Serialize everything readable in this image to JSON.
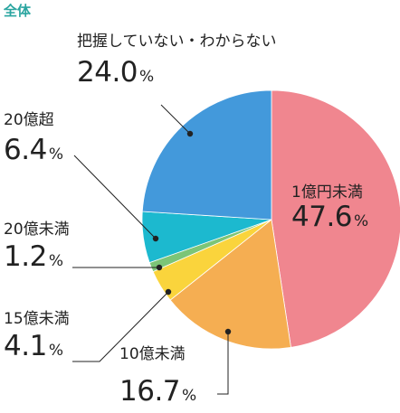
{
  "header": {
    "title": "全体"
  },
  "colors": {
    "title": "#2aa5a0",
    "line": "#222222",
    "divider": "#ffffff"
  },
  "chart_data": {
    "type": "pie",
    "start": "12 o'clock",
    "direction": "clockwise",
    "unit": "%",
    "slices": [
      {
        "id": "lt1",
        "label": "1億円未満",
        "value": 47.6,
        "value_text": "47.6",
        "color": "#f0868f"
      },
      {
        "id": "1to10",
        "label": "10億未満",
        "value": 16.7,
        "value_text": "16.7",
        "color": "#f5ae52"
      },
      {
        "id": "10to15",
        "label": "15億未満",
        "value": 4.1,
        "value_text": "4.1",
        "color": "#fad43c"
      },
      {
        "id": "15to20",
        "label": "20億未満",
        "value": 1.2,
        "value_text": "1.2",
        "color": "#7cc577"
      },
      {
        "id": "gt20",
        "label": "20億超",
        "value": 6.4,
        "value_text": "6.4",
        "color": "#1cb9cf"
      },
      {
        "id": "unk",
        "label": "把握していない・わからない",
        "value": 24.0,
        "value_text": "24.0",
        "color": "#4399db"
      }
    ]
  }
}
